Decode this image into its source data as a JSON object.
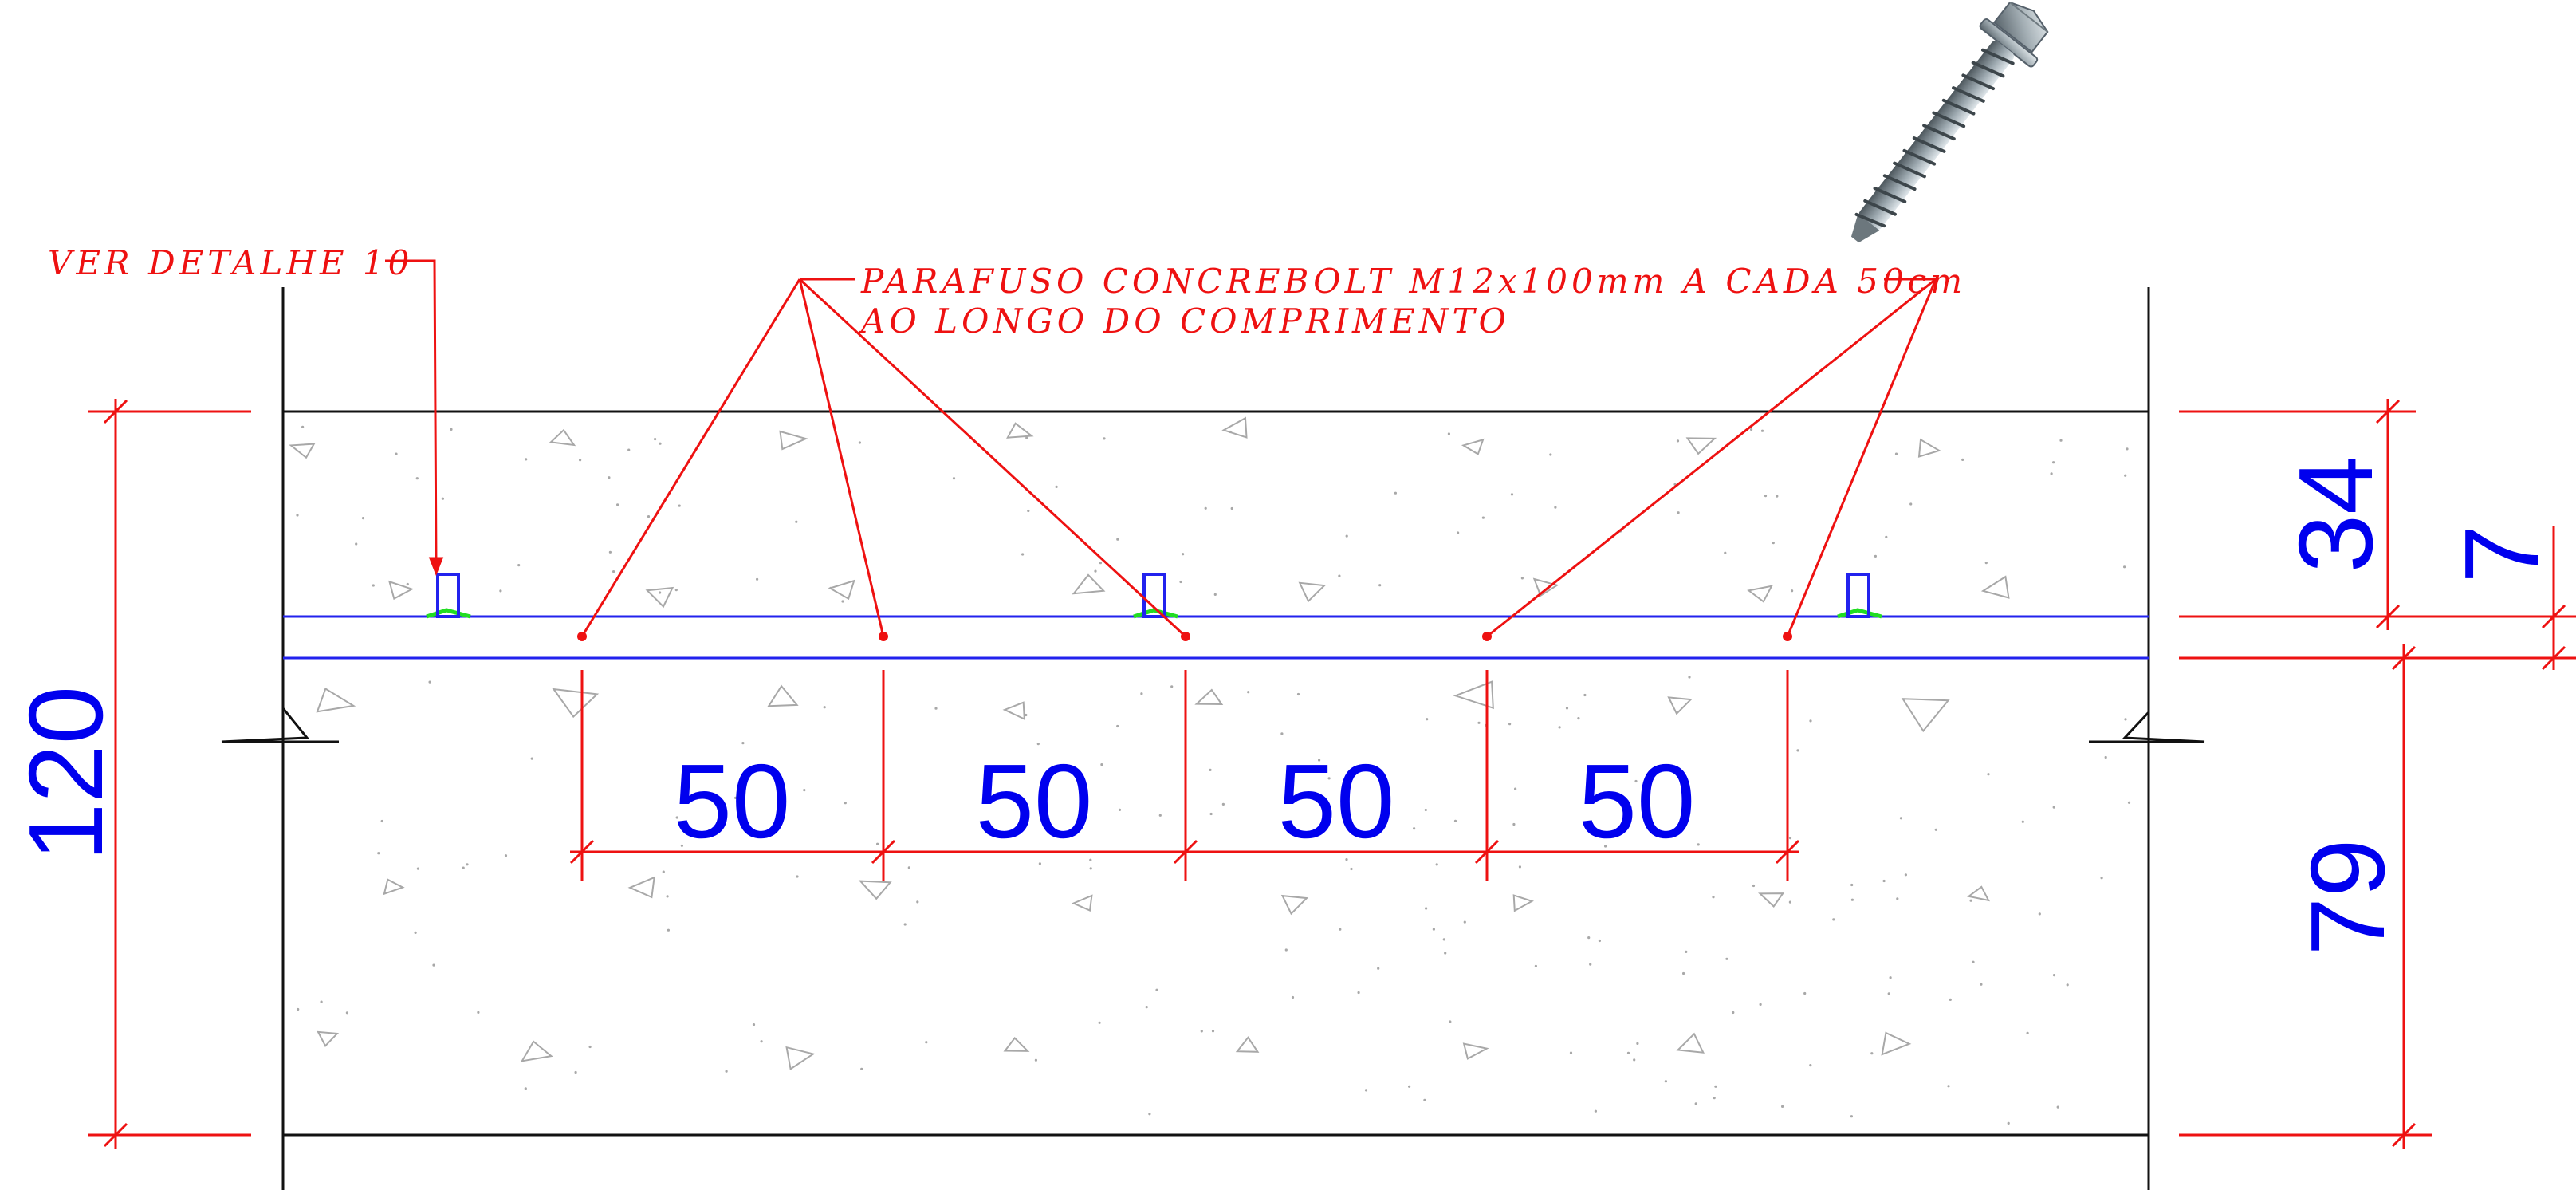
{
  "colors": {
    "annotation": "#ee1111",
    "dimension_text": "#0000ee",
    "outline": "#111111",
    "layer_line": "#2222ee",
    "anchor_base": "#22dd22",
    "aggregate": "#a8a8a8"
  },
  "notes": {
    "detail_reference": "VER DETALHE 10",
    "screw_line1": "PARAFUSO CONCREBOLT M12x100mm A CADA 50cm",
    "screw_line2": "AO LONGO DO COMPRIMENTO"
  },
  "dimensions": {
    "total_height": "120",
    "upper_layer": "34",
    "joint_layer": "7",
    "lower_layer": "79",
    "spacing": [
      "50",
      "50",
      "50",
      "50"
    ]
  },
  "illustration": {
    "icon": "concrete-screw-photo-icon"
  }
}
